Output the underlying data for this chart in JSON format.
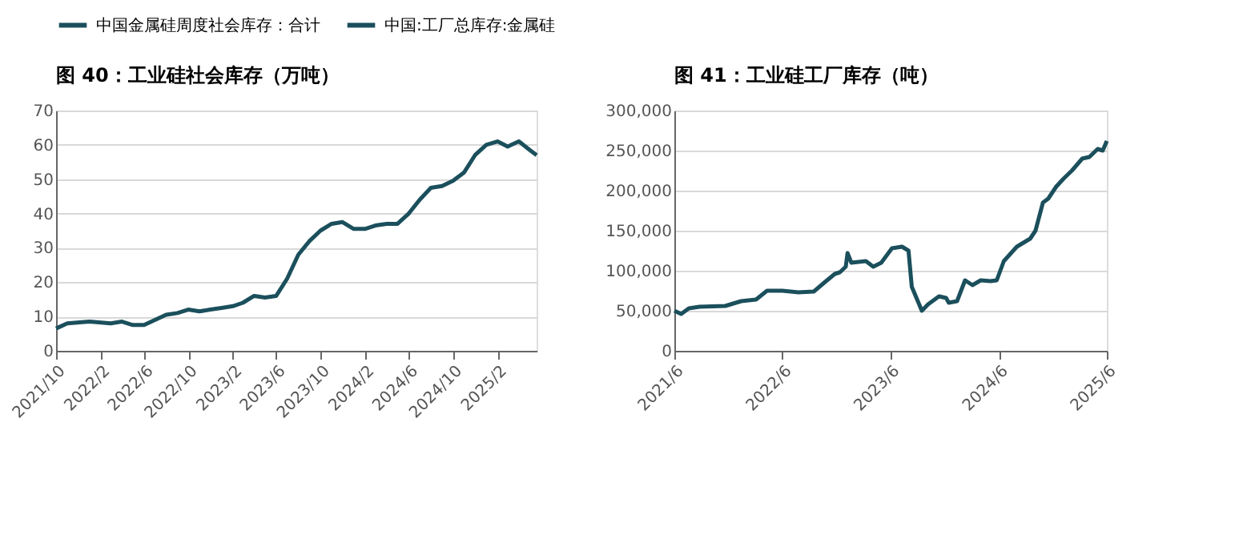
{
  "chart_data": [
    {
      "type": "line",
      "title": "图 40：工业硅社会库存（万吨）",
      "legend": "top",
      "grid": "y",
      "xlim": [
        "2021-10-01",
        "2025-05-20"
      ],
      "xticks": [
        {
          "value": "2021-10-01",
          "label": "2021/10"
        },
        {
          "value": "2022-02-01",
          "label": "2022/2"
        },
        {
          "value": "2022-06-01",
          "label": "2022/6"
        },
        {
          "value": "2022-10-01",
          "label": "2022/10"
        },
        {
          "value": "2023-02-01",
          "label": "2023/2"
        },
        {
          "value": "2023-06-01",
          "label": "2023/6"
        },
        {
          "value": "2023-10-01",
          "label": "2023/10"
        },
        {
          "value": "2024-02-01",
          "label": "2024/2"
        },
        {
          "value": "2024-06-01",
          "label": "2024/6"
        },
        {
          "value": "2024-10-01",
          "label": "2024/10"
        },
        {
          "value": "2025-02-01",
          "label": "2025/2"
        }
      ],
      "ylim": [
        0,
        70
      ],
      "yticks": [
        0,
        10,
        20,
        30,
        40,
        50,
        60,
        70
      ],
      "x": [
        "2021-10-01",
        "2021-11-01",
        "2022-01-01",
        "2022-03-01",
        "2022-04-01",
        "2022-05-01",
        "2022-06-01",
        "2022-07-01",
        "2022-08-01",
        "2022-09-01",
        "2022-10-01",
        "2022-11-01",
        "2022-12-01",
        "2023-01-01",
        "2023-02-01",
        "2023-03-01",
        "2023-04-01",
        "2023-05-01",
        "2023-06-01",
        "2023-07-01",
        "2023-08-01",
        "2023-09-01",
        "2023-10-01",
        "2023-11-01",
        "2023-12-01",
        "2024-01-01",
        "2024-02-01",
        "2024-03-01",
        "2024-04-01",
        "2024-05-01",
        "2024-06-01",
        "2024-07-01",
        "2024-08-01",
        "2024-09-01",
        "2024-10-01",
        "2024-11-01",
        "2024-12-01",
        "2025-01-01",
        "2025-02-01",
        "2025-03-01",
        "2025-04-01",
        "2025-05-01",
        "2025-05-20"
      ],
      "series": [
        {
          "name": "中国金属硅周度社会库存：合计",
          "color": "#1b4f5c",
          "values": [
            6.5,
            8,
            8.5,
            8,
            8.5,
            7.5,
            7.5,
            9,
            10.5,
            11,
            12,
            11.5,
            12,
            12.5,
            13,
            14,
            16,
            15.5,
            16,
            21,
            28,
            32,
            35,
            37,
            37.5,
            35.5,
            35.5,
            36.5,
            37,
            37,
            40,
            44,
            47.5,
            48,
            49.5,
            52,
            57,
            60,
            61,
            59.5,
            61,
            58.5,
            57
          ]
        }
      ]
    },
    {
      "type": "line",
      "title": "图 41：工业硅工厂库存（吨）",
      "legend": "top",
      "grid": "y",
      "xlim": [
        "2021-06-01",
        "2025-06-01"
      ],
      "xticks": [
        {
          "value": "2021-06-01",
          "label": "2021/6"
        },
        {
          "value": "2022-06-01",
          "label": "2022/6"
        },
        {
          "value": "2023-06-01",
          "label": "2023/6"
        },
        {
          "value": "2024-06-01",
          "label": "2024/6"
        },
        {
          "value": "2025-06-01",
          "label": "2025/6"
        }
      ],
      "ylim": [
        0,
        300000
      ],
      "yticks": [
        0,
        {
          "value": 50000,
          "label": "50,000"
        },
        {
          "value": 100000,
          "label": "100,000"
        },
        {
          "value": 150000,
          "label": "150,000"
        },
        {
          "value": 200000,
          "label": "200,000"
        },
        {
          "value": 250000,
          "label": "250,000"
        },
        {
          "value": 300000,
          "label": "300,000"
        }
      ],
      "x": [
        "2021-06-01",
        "2021-06-24",
        "2021-07-20",
        "2021-08-25",
        "2021-11-20",
        "2022-01-13",
        "2022-03-04",
        "2022-04-10",
        "2022-06-01",
        "2022-07-25",
        "2022-09-15",
        "2022-10-20",
        "2022-11-25",
        "2022-12-12",
        "2023-01-01",
        "2023-01-07",
        "2023-01-20",
        "2023-03-10",
        "2023-04-04",
        "2023-05-01",
        "2023-06-06",
        "2023-07-10",
        "2023-08-01",
        "2023-08-12",
        "2023-09-15",
        "2023-10-06",
        "2023-11-12",
        "2023-12-06",
        "2023-12-15",
        "2024-01-12",
        "2024-02-08",
        "2024-03-04",
        "2024-04-01",
        "2024-05-04",
        "2024-05-25",
        "2024-06-18",
        "2024-08-01",
        "2024-09-15",
        "2024-10-03",
        "2024-10-28",
        "2024-11-15",
        "2024-12-12",
        "2025-01-06",
        "2025-02-03",
        "2025-03-10",
        "2025-04-03",
        "2025-05-01",
        "2025-05-18",
        "2025-06-01"
      ],
      "series": [
        {
          "name": "中国:工厂总库存:金属硅",
          "color": "#1b4f5c",
          "values": [
            50000,
            46000,
            53000,
            55000,
            56000,
            62000,
            64000,
            75000,
            75000,
            73000,
            74000,
            85000,
            96000,
            98000,
            105000,
            122000,
            110000,
            112000,
            105000,
            110000,
            128000,
            130000,
            125000,
            80000,
            50000,
            58000,
            68000,
            66000,
            60000,
            62000,
            88000,
            82000,
            88000,
            87000,
            88000,
            112000,
            130000,
            140000,
            150000,
            185000,
            190000,
            205000,
            215000,
            225000,
            240000,
            242000,
            252000,
            250000,
            262000
          ]
        }
      ]
    }
  ]
}
